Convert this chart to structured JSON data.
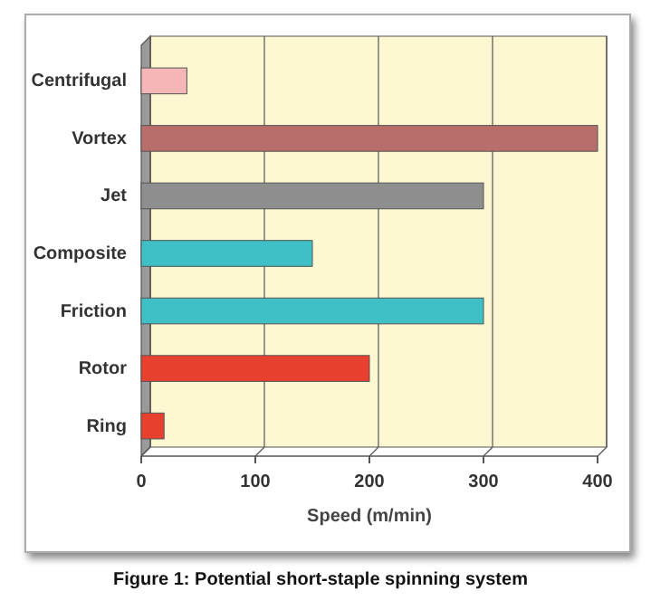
{
  "chart_data": {
    "type": "bar",
    "orientation": "horizontal",
    "xlabel": "Speed (m/min)",
    "categories": [
      "Centrifugal",
      "Vortex",
      "Jet",
      "Composite",
      "Friction",
      "Rotor",
      "Ring"
    ],
    "values": [
      40,
      400,
      300,
      150,
      300,
      200,
      20
    ],
    "colors": [
      "#f4b6b6",
      "#b86e6a",
      "#8e8e8e",
      "#3fbfc6",
      "#3fbfc6",
      "#e8402e",
      "#e8402e"
    ],
    "xlim": [
      0,
      400
    ],
    "xticks": [
      0,
      100,
      200,
      300,
      400
    ],
    "grid": "x",
    "annotations": [
      "Figure 1: Potential short-staple spinning system"
    ]
  }
}
